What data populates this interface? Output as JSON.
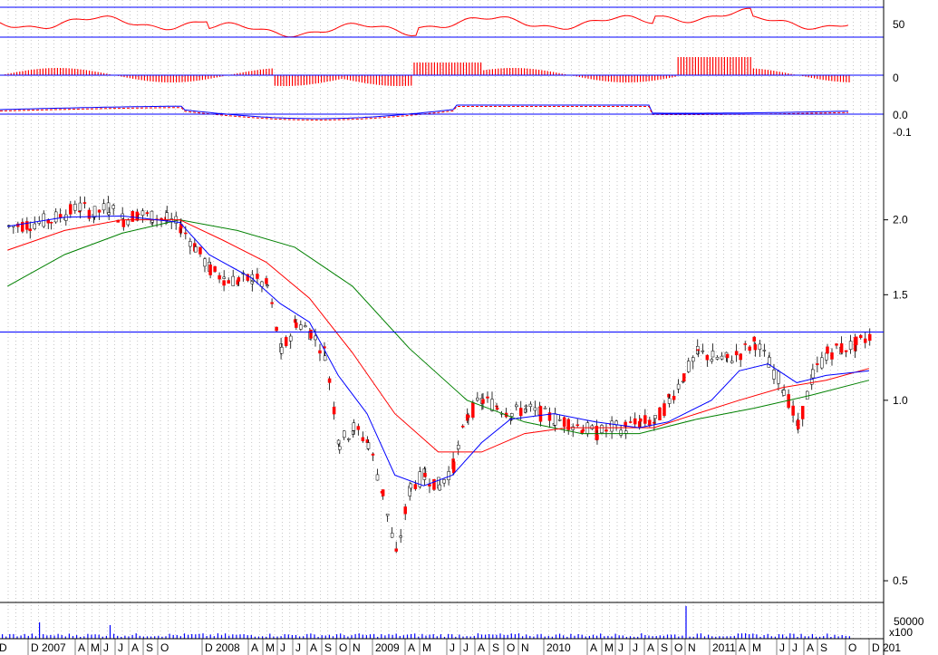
{
  "chart_data": {
    "type": "line",
    "scale": "log",
    "colors": {
      "rise_candle": "#ffffff",
      "fall_candle": "#ff0000",
      "wick": "#000000",
      "ma_short": "#0000ff",
      "ma_mid": "#ff0000",
      "ma_long": "#008000",
      "grid": "#a0a0a0",
      "hline": "#0000ff",
      "osc_line": "#ff0000",
      "hist_bar": "#ff0000",
      "macd_line": "#0000ff",
      "signal_line": "#ff0000",
      "volume_bar": "#0000ff"
    },
    "price_ticks": [
      {
        "label": "2.0",
        "value": 2.0
      },
      {
        "label": "1.5",
        "value": 1.5
      },
      {
        "label": "1.0",
        "value": 1.0
      },
      {
        "label": "0.5",
        "value": 0.5
      }
    ],
    "price_range": [
      0.46,
      2.78
    ],
    "horizontal_line": 1.3,
    "osc_ticks": [
      {
        "label": "50",
        "value": 50
      },
      {
        "label": "0",
        "value": 0
      },
      {
        "label": "0.0",
        "value": 0
      },
      {
        "label": "-0.1",
        "value": -0.1
      }
    ],
    "volume_label": "50000",
    "volume_unit": "x100",
    "x_labels": [
      "D",
      "D 2007",
      "A",
      "M",
      "J",
      "J",
      "A",
      "S",
      "O",
      "D 2008",
      "A",
      "M",
      "J",
      "J",
      "A",
      "S",
      "O",
      "N",
      "2009",
      "A",
      "M",
      "J",
      "J",
      "A",
      "S",
      "O",
      "N",
      "2010",
      "A",
      "M",
      "J",
      "J",
      "A",
      "S",
      "O",
      "N",
      "2011",
      "A",
      "M",
      "J",
      "J",
      "A",
      "S",
      "O",
      "D 201"
    ],
    "price_path": [
      [
        "2006-12-01",
        1.95
      ],
      [
        "2007-01-15",
        1.97
      ],
      [
        "2007-03-01",
        2.0
      ],
      [
        "2007-04-01",
        2.05
      ],
      [
        "2007-05-01",
        2.1
      ],
      [
        "2007-06-01",
        2.05
      ],
      [
        "2007-07-01",
        2.1
      ],
      [
        "2007-08-01",
        2.0
      ],
      [
        "2007-09-01",
        2.05
      ],
      [
        "2007-10-01",
        2.02
      ],
      [
        "2007-11-01",
        2.0
      ],
      [
        "2007-12-01",
        1.95
      ],
      [
        "2008-01-01",
        1.8
      ],
      [
        "2008-02-01",
        1.65
      ],
      [
        "2008-03-01",
        1.6
      ],
      [
        "2008-04-01",
        1.58
      ],
      [
        "2008-05-01",
        1.6
      ],
      [
        "2008-06-01",
        1.55
      ],
      [
        "2008-07-01",
        1.2
      ],
      [
        "2008-08-01",
        1.35
      ],
      [
        "2008-09-01",
        1.3
      ],
      [
        "2008-10-01",
        1.2
      ],
      [
        "2008-11-01",
        0.85
      ],
      [
        "2008-12-01",
        0.9
      ],
      [
        "2009-01-01",
        0.85
      ],
      [
        "2009-02-01",
        0.7
      ],
      [
        "2009-03-01",
        0.55
      ],
      [
        "2009-04-01",
        0.72
      ],
      [
        "2009-05-01",
        0.75
      ],
      [
        "2009-06-01",
        0.72
      ],
      [
        "2009-07-01",
        0.78
      ],
      [
        "2009-08-01",
        0.95
      ],
      [
        "2009-09-01",
        1.0
      ],
      [
        "2009-10-01",
        0.98
      ],
      [
        "2009-11-01",
        0.95
      ],
      [
        "2009-12-01",
        0.97
      ],
      [
        "2010-01-01",
        0.95
      ],
      [
        "2010-02-01",
        0.93
      ],
      [
        "2010-03-01",
        0.92
      ],
      [
        "2010-04-01",
        0.9
      ],
      [
        "2010-05-01",
        0.88
      ],
      [
        "2010-06-01",
        0.9
      ],
      [
        "2010-07-01",
        0.9
      ],
      [
        "2010-08-01",
        0.92
      ],
      [
        "2010-09-01",
        0.92
      ],
      [
        "2010-10-01",
        1.0
      ],
      [
        "2010-11-01",
        1.1
      ],
      [
        "2010-12-01",
        1.2
      ],
      [
        "2011-01-01",
        1.18
      ],
      [
        "2011-02-01",
        1.17
      ],
      [
        "2011-03-01",
        1.2
      ],
      [
        "2011-04-01",
        1.25
      ],
      [
        "2011-05-01",
        1.15
      ],
      [
        "2011-06-01",
        1.05
      ],
      [
        "2011-07-01",
        0.9
      ],
      [
        "2011-08-01",
        1.1
      ],
      [
        "2011-09-01",
        1.2
      ],
      [
        "2011-10-01",
        1.22
      ],
      [
        "2011-11-01",
        1.24
      ],
      [
        "2011-12-01",
        1.28
      ]
    ],
    "ma_short": [
      [
        "2006-12-01",
        1.95
      ],
      [
        "2007-04-01",
        2.02
      ],
      [
        "2007-08-01",
        2.03
      ],
      [
        "2007-12-01",
        1.98
      ],
      [
        "2008-02-01",
        1.75
      ],
      [
        "2008-05-01",
        1.6
      ],
      [
        "2008-07-01",
        1.45
      ],
      [
        "2008-09-01",
        1.35
      ],
      [
        "2008-11-01",
        1.1
      ],
      [
        "2009-01-01",
        0.95
      ],
      [
        "2009-03-01",
        0.75
      ],
      [
        "2009-05-01",
        0.72
      ],
      [
        "2009-07-01",
        0.75
      ],
      [
        "2009-09-01",
        0.85
      ],
      [
        "2009-11-01",
        0.93
      ],
      [
        "2010-02-01",
        0.95
      ],
      [
        "2010-05-01",
        0.92
      ],
      [
        "2010-08-01",
        0.9
      ],
      [
        "2010-10-01",
        0.92
      ],
      [
        "2011-01-01",
        1.0
      ],
      [
        "2011-03-01",
        1.12
      ],
      [
        "2011-05-01",
        1.15
      ],
      [
        "2011-07-01",
        1.07
      ],
      [
        "2011-09-01",
        1.1
      ],
      [
        "2011-12-01",
        1.12
      ]
    ],
    "ma_mid": [
      [
        "2006-12-01",
        1.78
      ],
      [
        "2007-04-01",
        1.92
      ],
      [
        "2007-08-01",
        2.0
      ],
      [
        "2007-12-01",
        2.0
      ],
      [
        "2008-03-01",
        1.85
      ],
      [
        "2008-06-01",
        1.7
      ],
      [
        "2008-09-01",
        1.48
      ],
      [
        "2008-12-01",
        1.2
      ],
      [
        "2009-03-01",
        0.95
      ],
      [
        "2009-06-01",
        0.82
      ],
      [
        "2009-09-01",
        0.82
      ],
      [
        "2009-12-01",
        0.88
      ],
      [
        "2010-03-01",
        0.9
      ],
      [
        "2010-06-01",
        0.9
      ],
      [
        "2010-09-01",
        0.9
      ],
      [
        "2010-12-01",
        0.95
      ],
      [
        "2011-03-01",
        1.0
      ],
      [
        "2011-06-01",
        1.05
      ],
      [
        "2011-09-01",
        1.08
      ],
      [
        "2011-12-01",
        1.13
      ]
    ],
    "ma_long": [
      [
        "2006-12-01",
        1.55
      ],
      [
        "2007-04-01",
        1.75
      ],
      [
        "2007-08-01",
        1.9
      ],
      [
        "2007-12-01",
        2.0
      ],
      [
        "2008-04-01",
        1.92
      ],
      [
        "2008-08-01",
        1.8
      ],
      [
        "2008-12-01",
        1.55
      ],
      [
        "2009-04-01",
        1.22
      ],
      [
        "2009-08-01",
        1.0
      ],
      [
        "2009-12-01",
        0.92
      ],
      [
        "2010-04-01",
        0.88
      ],
      [
        "2010-08-01",
        0.88
      ],
      [
        "2010-12-01",
        0.93
      ],
      [
        "2011-04-01",
        0.97
      ],
      [
        "2011-08-01",
        1.02
      ],
      [
        "2011-12-01",
        1.08
      ]
    ]
  }
}
